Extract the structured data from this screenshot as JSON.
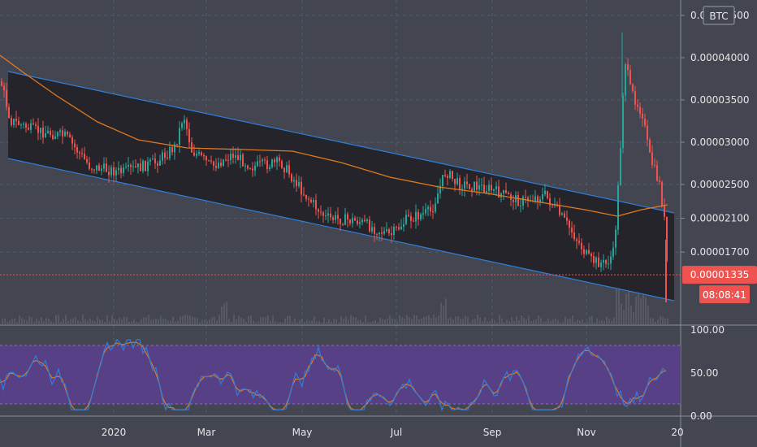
{
  "chart_data": [
    {
      "type": "candlestick",
      "currency_badge": "BTC",
      "price_axis_ticks": [
        {
          "label": "0.00004500",
          "value": 4.5e-05
        },
        {
          "label": "0.00004000",
          "value": 4e-05
        },
        {
          "label": "0.00003500",
          "value": 3.5e-05
        },
        {
          "label": "0.00003000",
          "value": 3e-05
        },
        {
          "label": "0.00002500",
          "value": 2.5e-05
        },
        {
          "label": "0.00002100",
          "value": 2.1e-05
        },
        {
          "label": "0.00001700",
          "value": 1.7e-05
        }
      ],
      "current_price": {
        "label": "0.00001335",
        "value": 1.335e-05
      },
      "countdown": "08:08:41",
      "time_axis_labels": [
        "2020",
        "Mar",
        "May",
        "Jul",
        "Sep",
        "Nov",
        "20"
      ],
      "colors": {
        "background": "#434651",
        "channel_fill": "#1e1f23",
        "channel_line": "#2f7fd9",
        "moving_average": "#e07a1f",
        "up_candle": "#26a69a",
        "down_candle": "#ef5350",
        "current_price_badge": "#ef5350",
        "current_price_line": "#ef5350",
        "volume": "#5b5e69"
      }
    },
    {
      "type": "line",
      "indicator": "oscillator",
      "y_axis_ticks": [
        {
          "label": "100.00",
          "value": 100
        },
        {
          "label": "50.00",
          "value": 50
        },
        {
          "label": "0.00",
          "value": 0
        }
      ],
      "band": [
        10,
        90
      ],
      "series": [
        {
          "color": "#2f7fd9"
        },
        {
          "color": "#e07a1f"
        }
      ],
      "colors": {
        "band_fill": "#5a3f8f",
        "band_edge": "#8a6bbf"
      }
    }
  ]
}
